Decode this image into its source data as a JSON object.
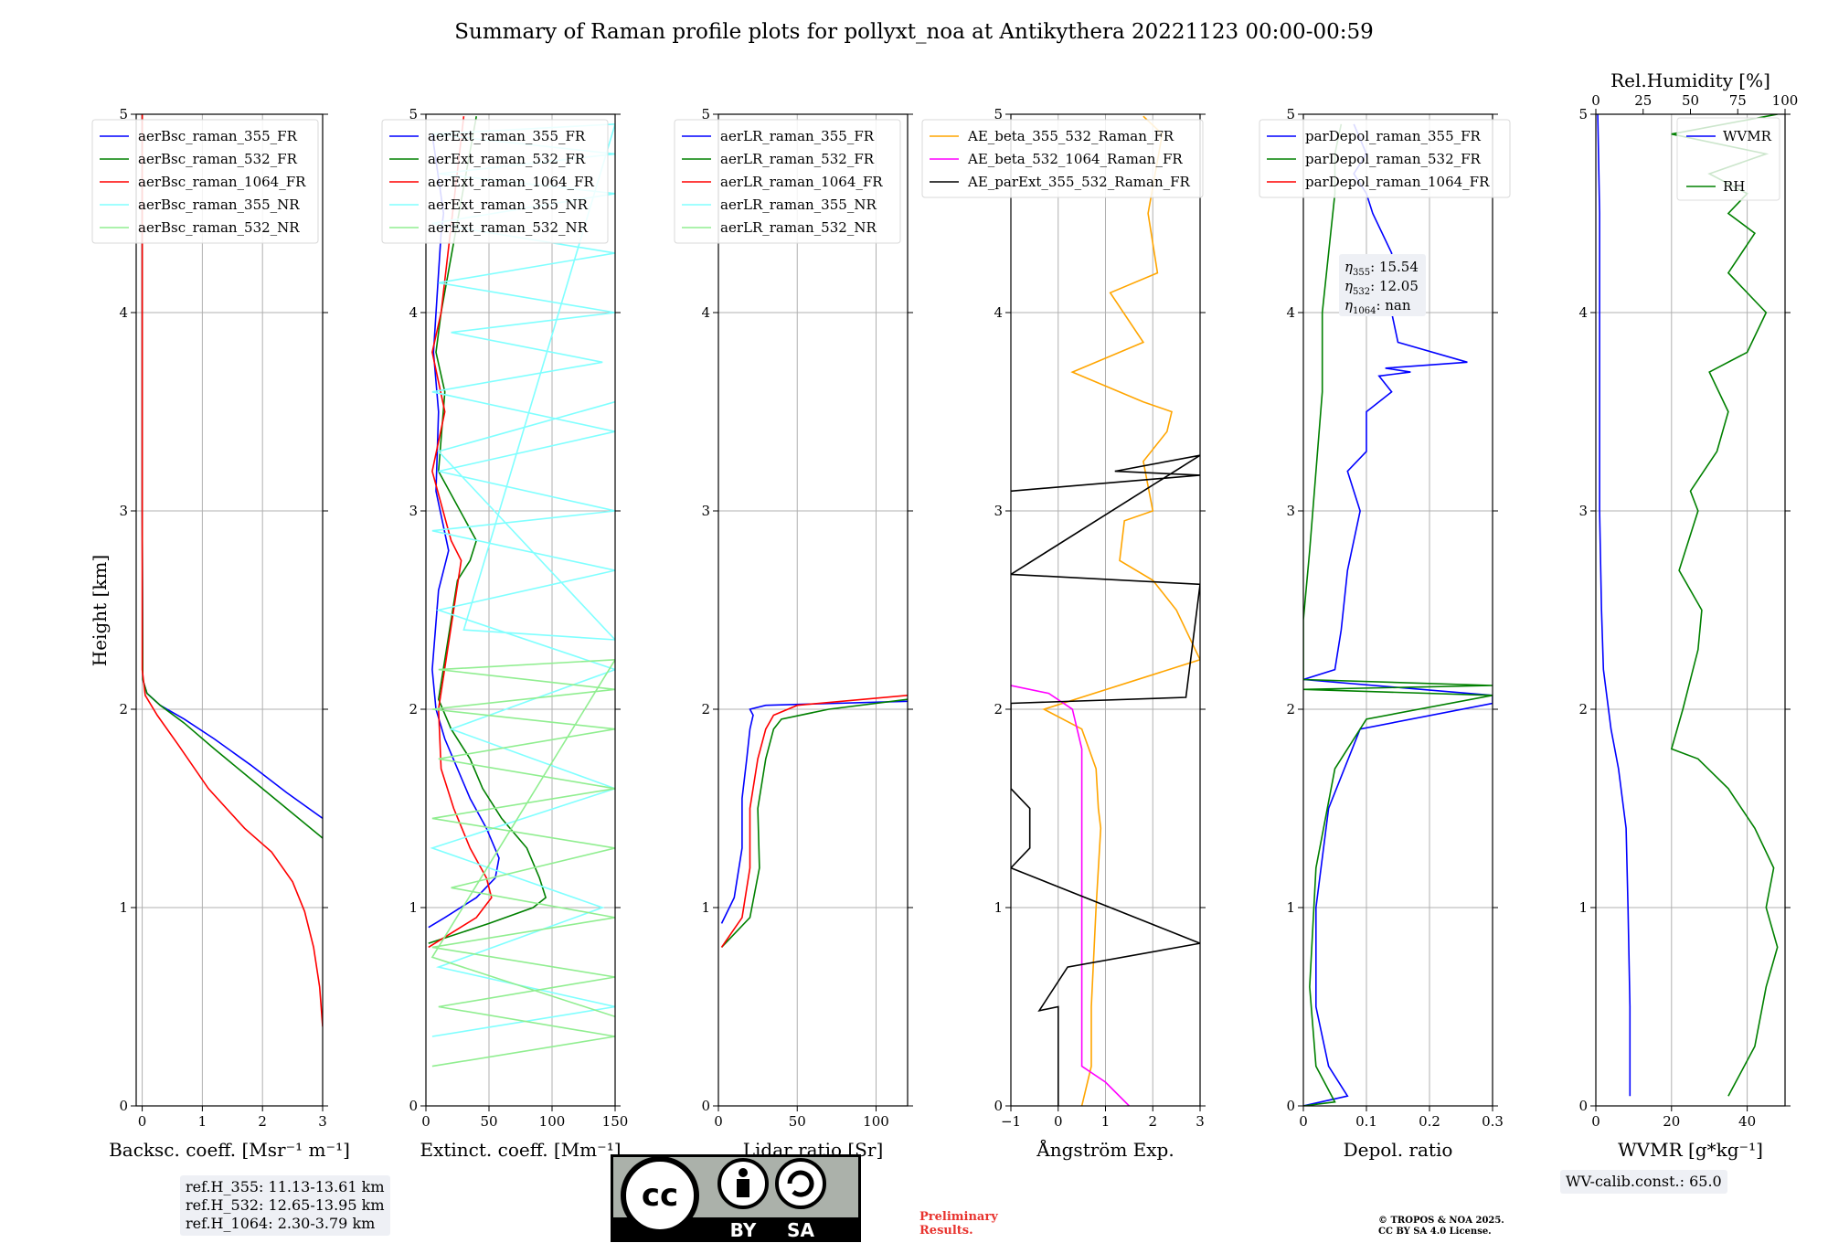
{
  "title": "Summary of Raman profile plots for pollyxt_noa at Antikythera 20221123 00:00-00:59",
  "ylabel": "Height [km]",
  "ref_heights": [
    "ref.H_355: 11.13-13.61 km",
    "ref.H_532: 12.65-13.95 km",
    "ref.H_1064: 2.30-3.79 km"
  ],
  "wv_calib": "WV-calib.const.: 65.0",
  "preliminary": [
    "Preliminary",
    "Results."
  ],
  "copyright": [
    "© TROPOS & NOA 2025.",
    "CC BY SA 4.0 License."
  ],
  "license_badge": {
    "left": "BY",
    "right": "SA",
    "cc": "cc"
  },
  "eta_labels": {
    "l355": ": 15.54",
    "l532": ": 12.05",
    "l1064": ": nan"
  },
  "colors": {
    "blue": "#0000ff",
    "green": "#008000",
    "red": "#ff0000",
    "cyan": "#80ffff",
    "lightgreen": "#90ee90",
    "orange": "#ffa500",
    "magenta": "#ff00ff",
    "black": "#000000"
  },
  "chart_data": [
    {
      "type": "line",
      "xlabel": "Backsc. coeff. [Msr⁻¹ m⁻¹]",
      "xlim": [
        -0.1,
        3
      ],
      "ylim": [
        0,
        5
      ],
      "xticks": [
        0,
        1,
        2,
        3
      ],
      "yticks": [
        0,
        1,
        2,
        3,
        4,
        5
      ],
      "legend": "top-left",
      "series": [
        {
          "name": "aerBsc_raman_355_FR",
          "color": "#0000ff",
          "x": [
            3,
            2.4,
            1.8,
            1.2,
            0.7,
            0.3,
            0.08,
            0.01,
            0,
            0
          ],
          "y": [
            1.45,
            1.58,
            1.72,
            1.85,
            1.95,
            2.02,
            2.08,
            2.15,
            3,
            5
          ]
        },
        {
          "name": "aerBsc_raman_532_FR",
          "color": "#008000",
          "x": [
            3,
            2.4,
            1.8,
            1.2,
            0.7,
            0.3,
            0.08,
            0.01,
            0,
            0
          ],
          "y": [
            1.35,
            1.5,
            1.65,
            1.8,
            1.93,
            2.02,
            2.08,
            2.15,
            3,
            5
          ]
        },
        {
          "name": "aerBsc_raman_1064_FR",
          "color": "#ff0000",
          "x": [
            3,
            2.95,
            2.85,
            2.7,
            2.5,
            2.15,
            1.7,
            1.1,
            0.6,
            0.25,
            0.05,
            0,
            0
          ],
          "y": [
            0.4,
            0.6,
            0.8,
            0.98,
            1.13,
            1.28,
            1.4,
            1.6,
            1.82,
            1.97,
            2.07,
            2.2,
            5
          ]
        },
        {
          "name": "aerBsc_raman_355_NR",
          "color": "#80ffff",
          "x": [],
          "y": []
        },
        {
          "name": "aerBsc_raman_532_NR",
          "color": "#90ee90",
          "x": [],
          "y": []
        }
      ]
    },
    {
      "type": "line",
      "xlabel": "Extinct. coeff. [Mm⁻¹]",
      "xlim": [
        0,
        150
      ],
      "ylim": [
        0,
        5
      ],
      "xticks": [
        0,
        50,
        100,
        150
      ],
      "yticks": [
        0,
        1,
        2,
        3,
        4,
        5
      ],
      "legend": "top-left",
      "series": [
        {
          "name": "aerExt_raman_355_FR",
          "color": "#0000ff",
          "x": [
            2,
            15,
            40,
            55,
            58,
            48,
            35,
            25,
            15,
            8,
            5,
            10,
            18,
            8,
            10,
            6,
            10,
            12,
            14,
            5
          ],
          "y": [
            0.9,
            0.95,
            1.05,
            1.15,
            1.25,
            1.4,
            1.55,
            1.7,
            1.85,
            2.0,
            2.2,
            2.6,
            2.8,
            3.1,
            3.5,
            3.8,
            4.2,
            4.4,
            4.5,
            4.9
          ]
        },
        {
          "name": "aerExt_raman_532_FR",
          "color": "#008000",
          "x": [
            2,
            50,
            85,
            95,
            90,
            80,
            60,
            45,
            35,
            20,
            10,
            25,
            35,
            40,
            10,
            15,
            8,
            12,
            40
          ],
          "y": [
            0.82,
            0.92,
            1.0,
            1.05,
            1.15,
            1.3,
            1.45,
            1.6,
            1.75,
            1.9,
            2.05,
            2.65,
            2.75,
            2.85,
            3.2,
            3.6,
            3.8,
            4.0,
            4.99
          ]
        },
        {
          "name": "aerExt_raman_1064_FR",
          "color": "#ff0000",
          "x": [
            2,
            40,
            52,
            48,
            35,
            22,
            12,
            10,
            28,
            20,
            5,
            15,
            5,
            12,
            30
          ],
          "y": [
            0.8,
            0.95,
            1.05,
            1.15,
            1.3,
            1.5,
            1.7,
            2.0,
            2.75,
            2.85,
            3.2,
            3.5,
            3.8,
            4.0,
            4.99
          ]
        },
        {
          "name": "aerExt_raman_355_NR",
          "color": "#80ffff",
          "x": [
            5,
            150,
            10,
            140,
            5,
            150,
            20,
            150,
            10,
            150,
            5,
            150,
            10,
            150,
            5,
            140,
            20,
            150,
            10,
            150,
            5,
            150,
            10,
            150,
            5,
            150,
            30,
            150,
            10,
            150
          ],
          "y": [
            0.35,
            0.5,
            0.7,
            1.0,
            1.3,
            1.6,
            1.9,
            2.2,
            2.5,
            2.7,
            2.9,
            3.0,
            3.2,
            3.4,
            3.6,
            3.75,
            3.9,
            4.0,
            4.15,
            4.3,
            4.45,
            4.6,
            4.7,
            4.8,
            4.9,
            4.95,
            2.4,
            2.35,
            3.3,
            3.55
          ]
        },
        {
          "name": "aerExt_raman_532_NR",
          "color": "#90ee90",
          "x": [
            5,
            150,
            10,
            150,
            5,
            150,
            20,
            150,
            5,
            150,
            10,
            150,
            5,
            150,
            10,
            150,
            5,
            150
          ],
          "y": [
            0.2,
            0.35,
            0.5,
            0.65,
            0.8,
            0.95,
            1.1,
            1.3,
            1.45,
            1.6,
            1.75,
            1.9,
            2.0,
            2.1,
            2.2,
            2.25,
            0.75,
            0.45
          ]
        }
      ]
    },
    {
      "type": "line",
      "xlabel": "Lidar ratio [Sr]",
      "xlim": [
        0,
        120
      ],
      "ylim": [
        0,
        5
      ],
      "xticks": [
        0,
        50,
        100
      ],
      "yticks": [
        0,
        1,
        2,
        3,
        4,
        5
      ],
      "legend": "top-left",
      "series": [
        {
          "name": "aerLR_raman_355_FR",
          "color": "#0000ff",
          "x": [
            2,
            10,
            15,
            15,
            18,
            20,
            22,
            20,
            30,
            120
          ],
          "y": [
            0.92,
            1.05,
            1.3,
            1.55,
            1.75,
            1.9,
            1.97,
            2.0,
            2.02,
            2.04
          ]
        },
        {
          "name": "aerLR_raman_532_FR",
          "color": "#008000",
          "x": [
            2,
            20,
            26,
            25,
            30,
            35,
            40,
            70,
            120
          ],
          "y": [
            0.8,
            0.95,
            1.2,
            1.5,
            1.75,
            1.9,
            1.95,
            2.0,
            2.05
          ]
        },
        {
          "name": "aerLR_raman_1064_FR",
          "color": "#ff0000",
          "x": [
            2,
            15,
            20,
            20,
            25,
            30,
            35,
            50,
            120
          ],
          "y": [
            0.8,
            0.95,
            1.2,
            1.5,
            1.75,
            1.9,
            1.97,
            2.02,
            2.07
          ]
        },
        {
          "name": "aerLR_raman_355_NR",
          "color": "#80ffff",
          "x": [],
          "y": []
        },
        {
          "name": "aerLR_raman_532_NR",
          "color": "#90ee90",
          "x": [],
          "y": []
        }
      ]
    },
    {
      "type": "line",
      "xlabel": "Ångström Exp.",
      "xlim": [
        -1,
        3
      ],
      "ylim": [
        0,
        5
      ],
      "xticks": [
        -1,
        0,
        1,
        2,
        3
      ],
      "yticks": [
        0,
        1,
        2,
        3,
        4,
        5
      ],
      "legend": "top-right",
      "series": [
        {
          "name": "AE_beta_355_532_Raman_FR",
          "color": "#ffa500",
          "x": [
            0.5,
            0.7,
            0.7,
            0.8,
            0.9,
            0.85,
            0.8,
            0.5,
            -0.3,
            3.0,
            2.5,
            2.0,
            1.3,
            1.4,
            2.0,
            1.8,
            2.3,
            2.4,
            1.8,
            0.3,
            1.8,
            1.1,
            2.1,
            1.9,
            2.2,
            1.8
          ],
          "y": [
            0,
            0.2,
            0.5,
            1.0,
            1.4,
            1.5,
            1.7,
            1.9,
            2.0,
            2.25,
            2.5,
            2.65,
            2.75,
            2.95,
            3.0,
            3.25,
            3.4,
            3.5,
            3.55,
            3.7,
            3.85,
            4.1,
            4.2,
            4.5,
            4.9,
            4.99
          ]
        },
        {
          "name": "AE_beta_532_1064_Raman_FR",
          "color": "#ff00ff",
          "x": [
            1.5,
            1.0,
            0.5,
            0.5,
            0.5,
            0.3,
            -0.2,
            -1.0
          ],
          "y": [
            0,
            0.12,
            0.2,
            1.0,
            1.8,
            2.0,
            2.08,
            2.12
          ]
        },
        {
          "name": "AE_parExt_355_532_Raman_FR",
          "color": "#000000",
          "x": [
            0,
            0,
            -0.4,
            0.2,
            3.0,
            -1.0,
            -0.6,
            -0.6,
            -1.0,
            -1.0,
            2.7,
            3.0,
            -1.0,
            3.0,
            1.2,
            3.0,
            -1.0
          ],
          "y": [
            0,
            0.5,
            0.48,
            0.7,
            0.82,
            1.2,
            1.3,
            1.5,
            1.6,
            2.03,
            2.06,
            2.63,
            2.68,
            3.28,
            3.2,
            3.18,
            3.1
          ]
        }
      ]
    },
    {
      "type": "line",
      "xlabel": "Depol. ratio",
      "xlim": [
        0,
        0.3
      ],
      "ylim": [
        0,
        5
      ],
      "xticks": [
        0,
        0.1,
        0.2,
        0.3
      ],
      "yticks": [
        0,
        1,
        2,
        3,
        4,
        5
      ],
      "legend": "top-left",
      "series": [
        {
          "name": "parDepol_raman_355_FR",
          "color": "#0000ff",
          "x": [
            0.0,
            0.07,
            0.04,
            0.02,
            0.02,
            0.04,
            0.09,
            0.3,
            0.3,
            0.0,
            0.05,
            0.06,
            0.07,
            0.09,
            0.07,
            0.1,
            0.1,
            0.14,
            0.12,
            0.17,
            0.13,
            0.26,
            0.15,
            0.14,
            0.14,
            0.11,
            0.1,
            0.08,
            0.1,
            0.08
          ],
          "y": [
            0,
            0.05,
            0.2,
            0.5,
            1.0,
            1.5,
            1.9,
            2.03,
            2.07,
            2.15,
            2.2,
            2.4,
            2.7,
            3.0,
            3.2,
            3.3,
            3.5,
            3.6,
            3.68,
            3.7,
            3.72,
            3.75,
            3.85,
            4.0,
            4.3,
            4.5,
            4.6,
            4.7,
            4.8,
            4.95
          ]
        },
        {
          "name": "parDepol_raman_532_FR",
          "color": "#008000",
          "x": [
            0.0,
            0.05,
            0.02,
            0.01,
            0.02,
            0.05,
            0.1,
            0.3,
            0.0,
            0.3,
            0.0,
            0.0,
            0.01,
            0.02,
            0.03,
            0.03,
            0.04,
            0.05,
            0.05,
            0.06
          ],
          "y": [
            0,
            0.02,
            0.2,
            0.6,
            1.2,
            1.7,
            1.95,
            2.07,
            2.1,
            2.12,
            2.15,
            2.45,
            2.8,
            3.2,
            3.6,
            4.0,
            4.3,
            4.6,
            4.8,
            4.95
          ]
        },
        {
          "name": "parDepol_raman_1064_FR",
          "color": "#ff0000",
          "x": [],
          "y": []
        }
      ]
    },
    {
      "type": "line",
      "xlabel": "WVMR [g*kg⁻¹]",
      "top_xlabel": "Rel.Humidity [%]",
      "xlim": [
        0,
        50
      ],
      "ylim": [
        0,
        5
      ],
      "xticks": [
        0,
        20,
        40
      ],
      "yticks": [
        0,
        1,
        2,
        3,
        4,
        5
      ],
      "top_xlim": [
        0,
        100
      ],
      "top_xticks": [
        0,
        25,
        50,
        75,
        100
      ],
      "legend": "top-right",
      "series": [
        {
          "name": "WVMR",
          "color": "#0000ff",
          "x": [
            9,
            9,
            8.5,
            8,
            6,
            4,
            2,
            1.5,
            1,
            1,
            1,
            1,
            0.5
          ],
          "y": [
            0.05,
            0.5,
            1.0,
            1.4,
            1.7,
            1.9,
            2.2,
            2.5,
            3.0,
            3.5,
            4.0,
            4.5,
            5.0
          ]
        },
        {
          "name": "RH",
          "color": "#008000",
          "x": [
            35,
            42,
            45,
            48,
            45,
            47,
            42,
            35,
            27,
            20,
            23,
            27,
            28,
            22,
            27,
            25,
            32,
            35,
            30,
            40,
            45,
            35,
            42,
            35,
            40,
            30,
            45,
            20,
            48
          ],
          "y": [
            0.05,
            0.3,
            0.6,
            0.8,
            1.0,
            1.2,
            1.4,
            1.6,
            1.75,
            1.8,
            2.0,
            2.3,
            2.5,
            2.7,
            3.0,
            3.1,
            3.3,
            3.5,
            3.7,
            3.8,
            4.0,
            4.2,
            4.4,
            4.5,
            4.6,
            4.7,
            4.8,
            4.9,
            5.0
          ]
        }
      ]
    }
  ]
}
